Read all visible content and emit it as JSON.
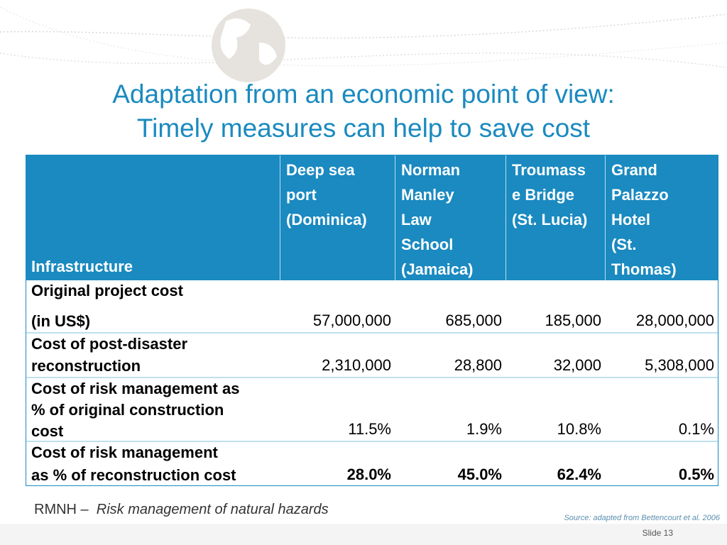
{
  "title": [
    "Adaptation from an economic point of view:",
    "Timely measures can help to save cost"
  ],
  "table": {
    "header": {
      "label": "Infrastructure",
      "columns": [
        [
          "Deep sea",
          "port",
          "(Dominica)"
        ],
        [
          "Norman",
          "Manley",
          "Law",
          "School",
          "(Jamaica)"
        ],
        [
          "Troumass",
          "e Bridge",
          "(St. Lucia)"
        ],
        [
          "Grand",
          "Palazzo",
          "Hotel",
          "(St.",
          "Thomas)"
        ]
      ]
    },
    "rows": [
      {
        "label": [
          "Original project cost",
          "(in US$)"
        ],
        "cells": [
          "57,000,000",
          "685,000",
          "185,000",
          "28,000,000"
        ]
      },
      {
        "label": [
          "Cost of post-disaster",
          "reconstruction"
        ],
        "cells": [
          "2,310,000",
          "28,800",
          "32,000",
          "5,308,000"
        ]
      },
      {
        "label": [
          "Cost of risk management as",
          "% of original construction",
          "cost"
        ],
        "cells": [
          "11.5%",
          "1.9%",
          "10.8%",
          "0.1%"
        ]
      },
      {
        "label": [
          "Cost of risk management",
          "as % of reconstruction cost"
        ],
        "cells": [
          "28.0%",
          "45.0%",
          "62.4%",
          "0.5%"
        ]
      }
    ]
  },
  "footnote": {
    "abbr": "RMNH –",
    "text": "Risk management of natural hazards"
  },
  "source": "Source: adapted from Bettencourt et al. 2006",
  "slide": "Slide 13"
}
